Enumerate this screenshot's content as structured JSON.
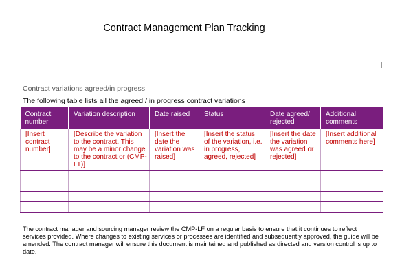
{
  "document": {
    "title": "Contract Management Plan Tracking",
    "section_heading": "Contract variations agreed/in progress",
    "intro": "The following table lists all the agreed / in progress contract variations",
    "table": {
      "headers": [
        "Contract number",
        "Variation description",
        "Date raised",
        "Status",
        "Date agreed/ rejected",
        "Additional comments"
      ],
      "row": [
        "[Insert contract number]",
        "[Describe the variation to the contract. This may be a minor change to the contract or (CMP-LT)]",
        "[Insert the date the variation was raised]",
        "[Insert the status of the variation, i.e. in progress, agreed, rejected]",
        "[Insert the date the variation was agreed or rejected]",
        "[Insert additional comments here]"
      ]
    },
    "footer": "The contract manager and sourcing manager review the CMP-LF on a regular basis to ensure that it continues to reflect services provided. Where changes to existing services or processes are identified and subsequently approved, the guide will be amended. The contract manager will ensure this document is maintained and published as directed and version control is up to date."
  },
  "colors": {
    "header_fill": "#7a1e7e",
    "placeholder_text": "#c00000"
  }
}
